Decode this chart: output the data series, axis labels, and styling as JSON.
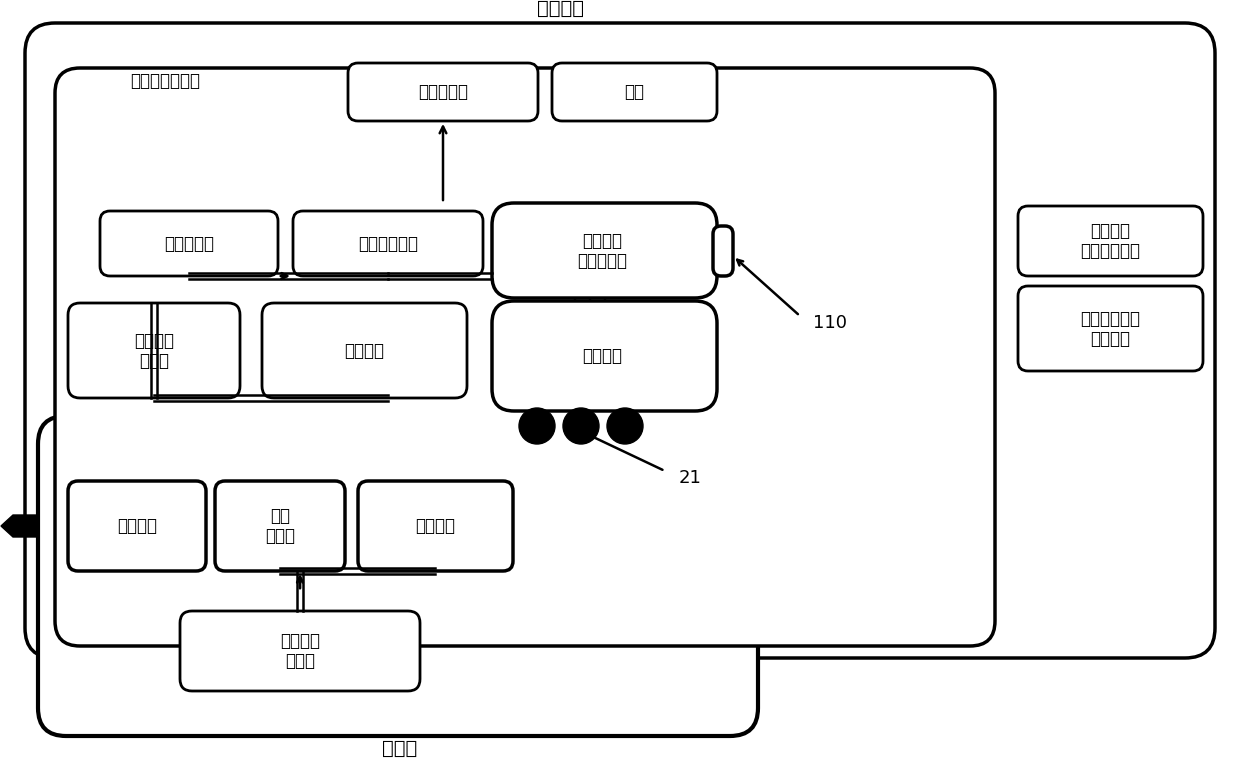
{
  "title": "智能手机",
  "subtitle_charging_plate": "充电板",
  "label_wireless_rx": "无线充电接收部",
  "label_smartphone_processor": "智能手机\n本体主处理器",
  "label_arrangement_module": "排列状态显示\n程序模块",
  "label_battery_charger": "电池充电部",
  "label_battery": "电池",
  "label_voltage_detect": "电压检测部",
  "label_voltage_stable": "电压稳定化部",
  "label_sensor_coil_voltage": "传感线圈\n电压输出部",
  "label_rx_control": "接收控制\n处理器",
  "label_secondary_coil": "二次线圈",
  "label_sensor_coil_rx": "传感线圈",
  "label_tx_sensor_coil": "传感线圈",
  "label_tx_control": "传送\n控制部",
  "label_primary_coil": "一次线圈",
  "label_tx_control_processor": "传送控制\n处理器",
  "label_21": "21",
  "label_110": "110",
  "bg_color": "#ffffff",
  "box_color": "#000000",
  "font_size": 13
}
